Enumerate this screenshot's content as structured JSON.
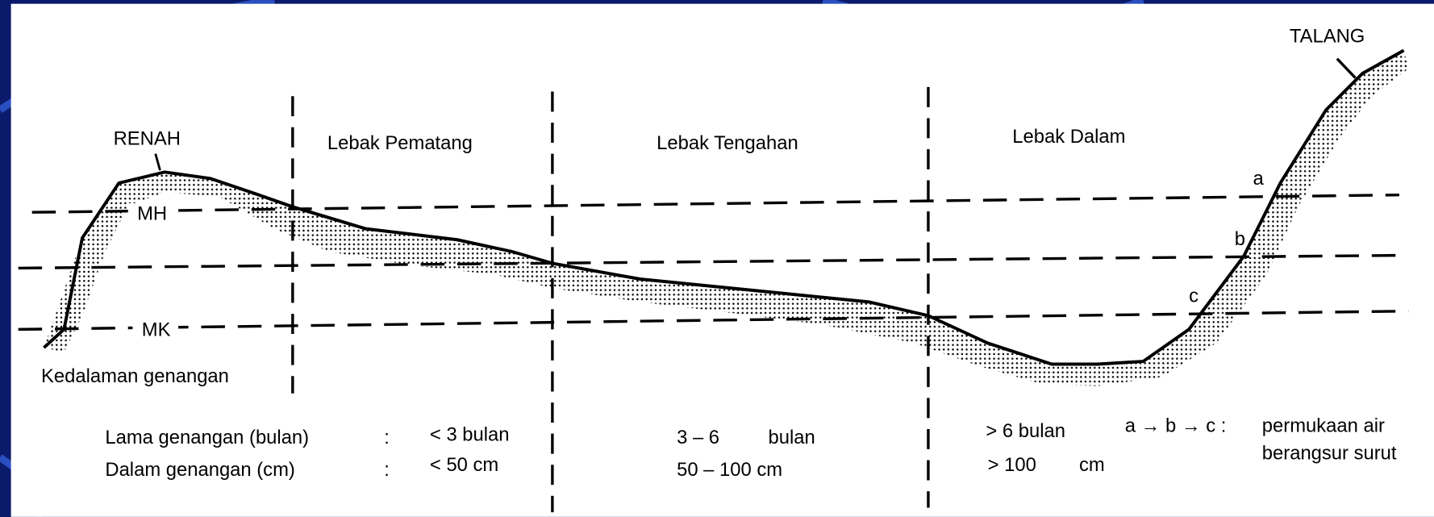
{
  "zones": {
    "renah": "RENAH",
    "pematang": "Lebak Pematang",
    "tengahan": "Lebak Tengahan",
    "dalam": "Lebak Dalam",
    "talang": "TALANG"
  },
  "levels": {
    "mh": "MH",
    "mk": "MK",
    "a": "a",
    "b": "b",
    "c": "c"
  },
  "depth_label": "Kedalaman genangan",
  "table": {
    "rows": [
      [
        "Lama genangan (bulan)",
        ":",
        "< 3 bulan",
        "3 – 6",
        "bulan",
        "> 6 bulan"
      ],
      [
        "Dalam genangan (cm)",
        ":",
        "< 50 cm",
        "50 – 100  cm",
        "> 100",
        "cm"
      ]
    ]
  },
  "note": {
    "sequence": "a → b → c :",
    "line1": "permukaan air",
    "line2": "berangsur surut"
  }
}
